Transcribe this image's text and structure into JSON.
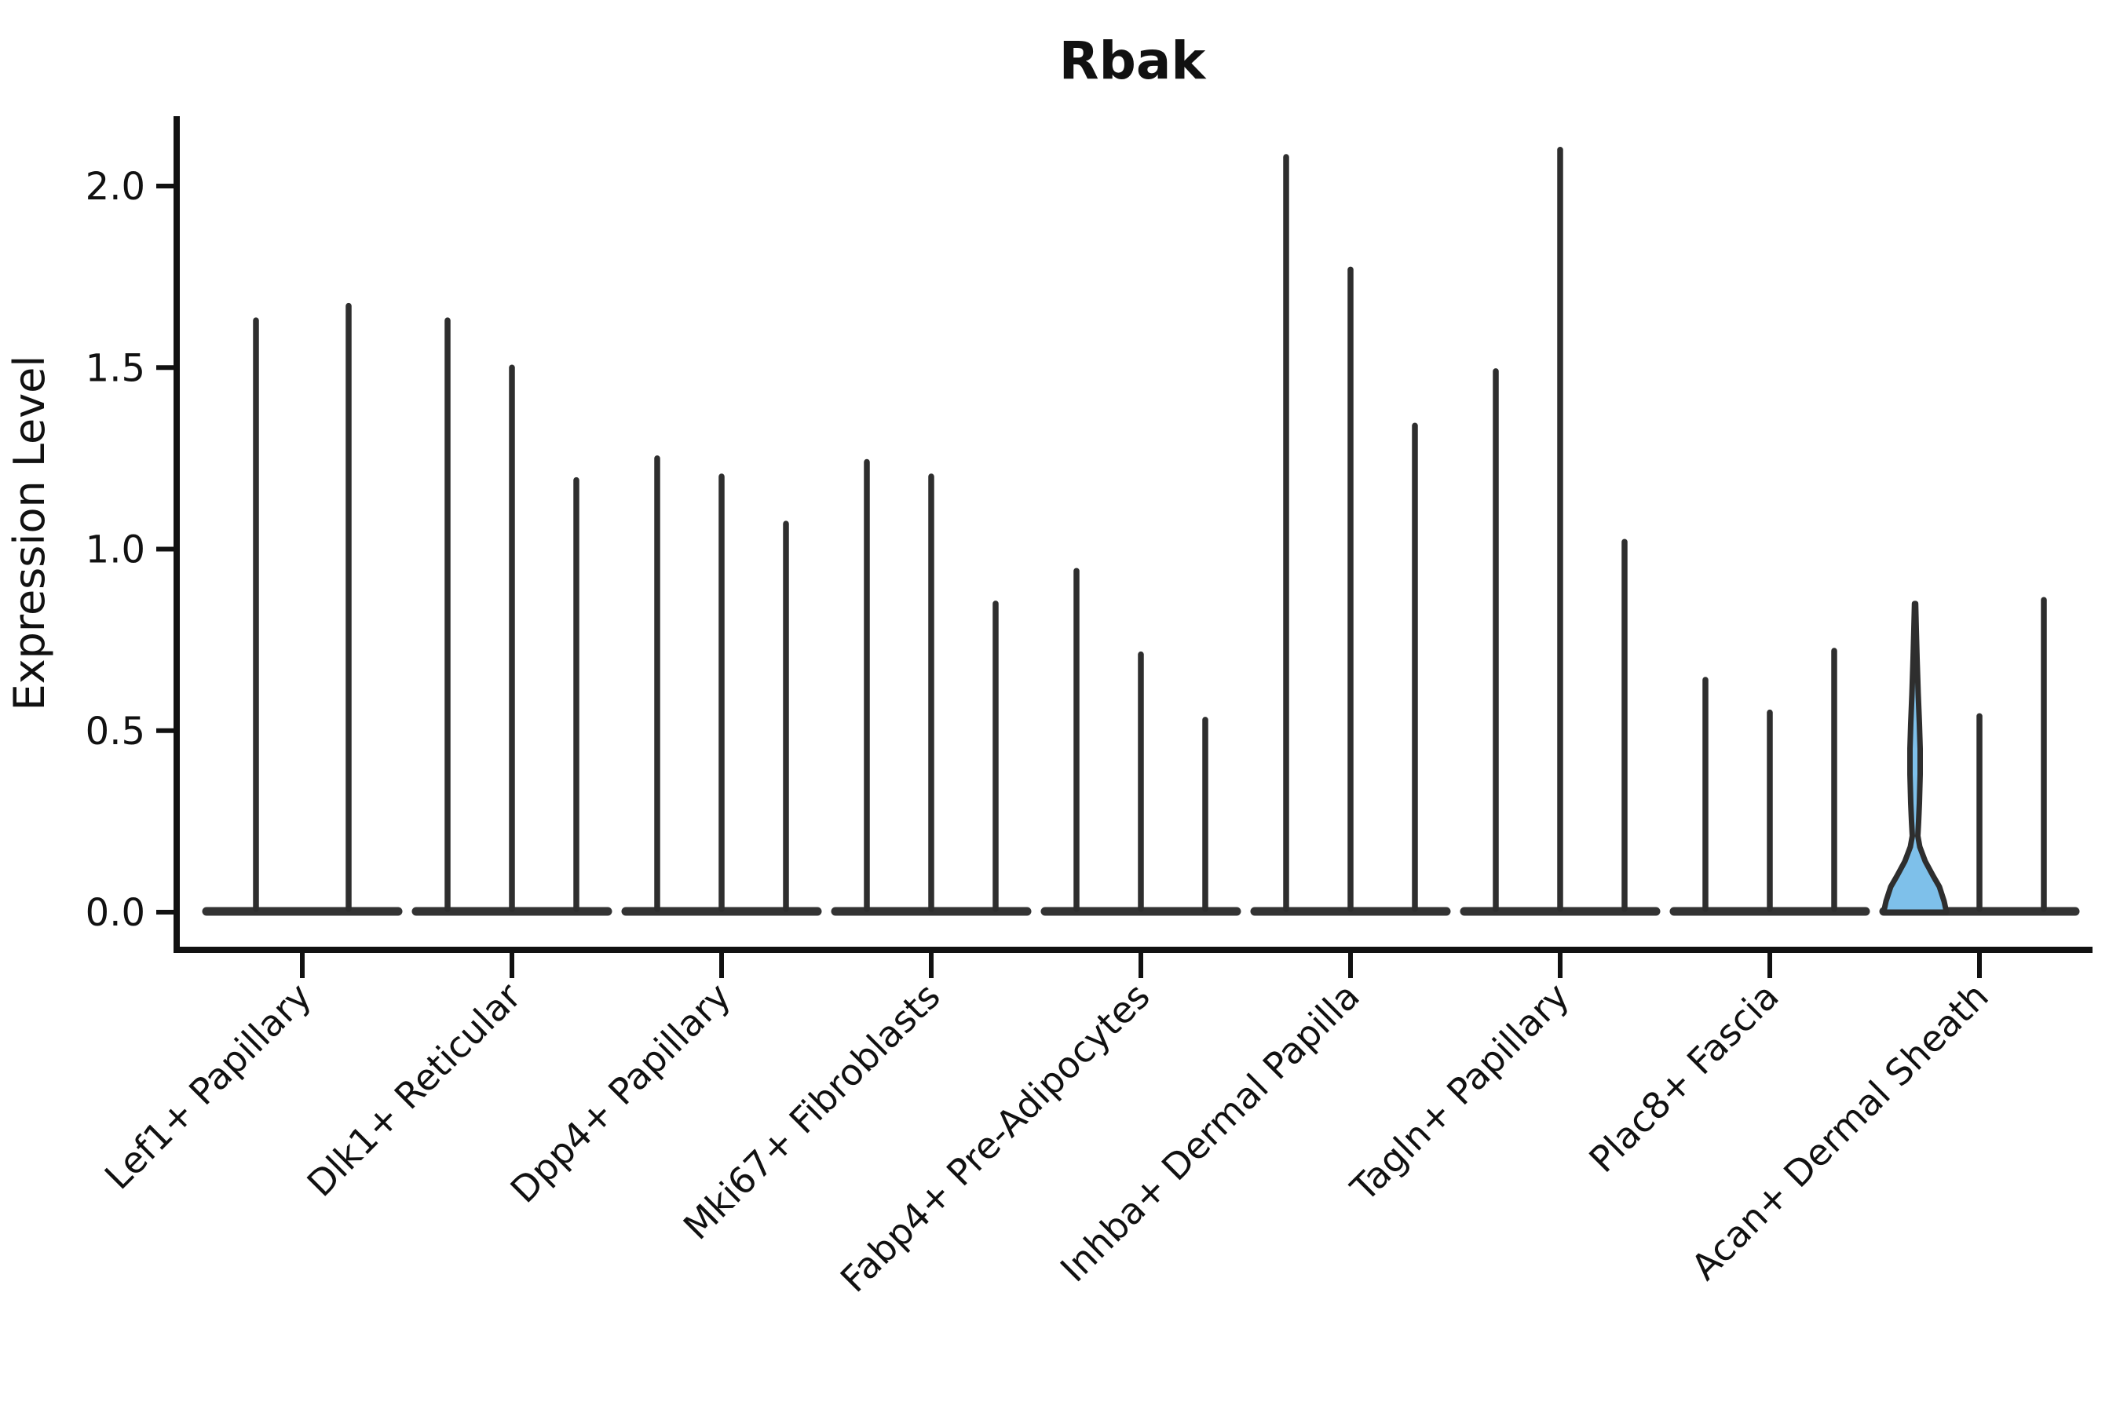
{
  "chart_data": {
    "type": "violin",
    "title": "Rbak",
    "xlabel": "",
    "ylabel": "Expression Level",
    "ytick_labels": [
      "0.0",
      "0.5",
      "1.0",
      "1.5",
      "2.0"
    ],
    "ytick_values": [
      0.0,
      0.5,
      1.0,
      1.5,
      2.0
    ],
    "ylim": [
      -0.1,
      2.19
    ],
    "grid": false,
    "legend_position": "none",
    "background_color": "#ffffff",
    "categories": [
      "Lef1+ Papillary",
      "Dlk1+ Reticular",
      "Dpp4+ Papillary",
      "Mki67+ Fibroblasts",
      "Fabp4+ Pre-Adipocytes",
      "Inhba+ Dermal Papilla",
      "Tagln+ Papillary",
      "Plac8+ Fascia",
      "Acan+ Dermal Sheath"
    ],
    "series": [
      {
        "category": "Lef1+ Papillary",
        "violin_max_expression": [
          1.63,
          1.67
        ]
      },
      {
        "category": "Dlk1+ Reticular",
        "violin_max_expression": [
          1.63,
          1.5,
          1.19
        ]
      },
      {
        "category": "Dpp4+ Papillary",
        "violin_max_expression": [
          1.25,
          1.2,
          1.07
        ]
      },
      {
        "category": "Mki67+ Fibroblasts",
        "violin_max_expression": [
          1.24,
          1.2,
          0.85
        ]
      },
      {
        "category": "Fabp4+ Pre-Adipocytes",
        "violin_max_expression": [
          0.94,
          0.71,
          0.53
        ]
      },
      {
        "category": "Inhba+ Dermal Papilla",
        "violin_max_expression": [
          2.08,
          1.77,
          1.34
        ]
      },
      {
        "category": "Tagln+ Papillary",
        "violin_max_expression": [
          1.49,
          2.1,
          1.02
        ]
      },
      {
        "category": "Plac8+ Fascia",
        "violin_max_expression": [
          0.64,
          0.55,
          0.72
        ]
      },
      {
        "category": "Acan+ Dermal Sheath",
        "violin_max_expression": [
          0.85,
          0.54,
          0.86
        ]
      }
    ],
    "highlighted_violin": {
      "category": "Acan+ Dermal Sheath",
      "violin_index": 0,
      "max_expression": 0.85,
      "fill_color": "#7EC0EA",
      "density_profile_value_halfwidth": [
        [
          0.0,
          40
        ],
        [
          0.03,
          37
        ],
        [
          0.07,
          31
        ],
        [
          0.1,
          23
        ],
        [
          0.14,
          13
        ],
        [
          0.18,
          6
        ],
        [
          0.21,
          3.5
        ],
        [
          0.25,
          4.5
        ],
        [
          0.3,
          5.5
        ],
        [
          0.38,
          6.5
        ],
        [
          0.45,
          6.5
        ],
        [
          0.52,
          5.5
        ],
        [
          0.6,
          4
        ],
        [
          0.7,
          2.5
        ],
        [
          0.78,
          1.5
        ],
        [
          0.85,
          0.7
        ]
      ]
    },
    "style": {
      "violin_stroke_color": "#2e2e2e",
      "baseline_stroke_color": "#333333",
      "axis_color": "#111111",
      "text_color": "#111111",
      "highlight_fill": "#7EC0EA"
    }
  }
}
